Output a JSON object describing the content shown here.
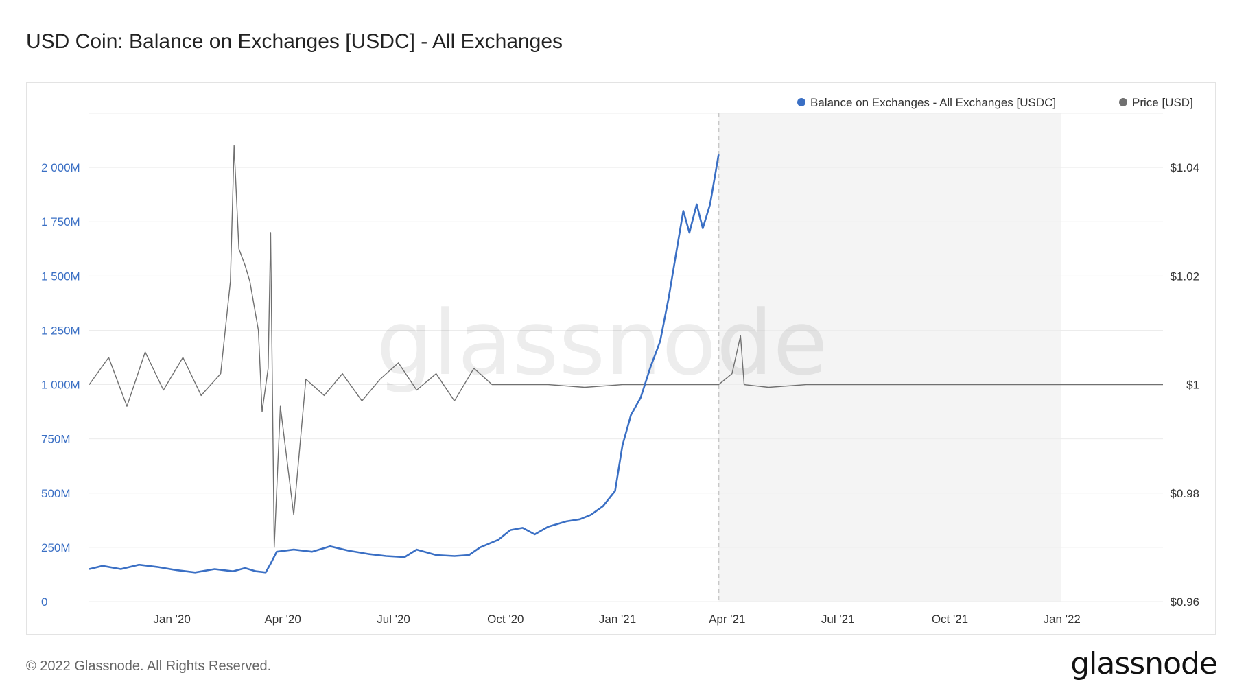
{
  "title": "USD Coin: Balance on Exchanges [USDC] - All Exchanges",
  "footer": "© 2022 Glassnode. All Rights Reserved.",
  "logo": "glassnode",
  "watermark": "glassnode",
  "chart_data": {
    "type": "line",
    "title": "USD Coin: Balance on Exchanges [USDC] - All Exchanges",
    "legend_position": "top-right",
    "grid": true,
    "x_ticks": [
      "Jan '20",
      "Apr '20",
      "Jul '20",
      "Oct '20",
      "Jan '21",
      "Apr '21",
      "Jul '21",
      "Oct '21",
      "Jan '22"
    ],
    "x_tick_dates": [
      "2020-01-01",
      "2020-04-01",
      "2020-07-01",
      "2020-10-01",
      "2021-01-01",
      "2021-04-01",
      "2021-07-01",
      "2021-10-01",
      "2022-01-01"
    ],
    "xlim": [
      "2019-10-25",
      "2022-03-25"
    ],
    "y_left": {
      "ticks": [
        "0",
        "250M",
        "500M",
        "750M",
        "1 000M",
        "1 250M",
        "1 500M",
        "1 750M",
        "2 000M"
      ],
      "tick_values": [
        0,
        250,
        500,
        750,
        1000,
        1250,
        1500,
        1750,
        2000
      ],
      "unit": "M",
      "ylim": [
        0,
        2250
      ]
    },
    "y_right": {
      "ticks": [
        "$0.96",
        "$0.98",
        "$1",
        "$1.02",
        "$1.04"
      ],
      "tick_values": [
        0.96,
        0.98,
        1.0,
        1.02,
        1.04
      ],
      "ylim": [
        0.96,
        1.05
      ]
    },
    "shaded_region": [
      "2021-03-25",
      "2021-12-31"
    ],
    "vertical_marker": "2021-03-25",
    "series": [
      {
        "name": "Balance on Exchanges - All Exchanges [USDC]",
        "axis": "left",
        "color": "#3a6fc4",
        "points": [
          [
            "2019-10-25",
            150
          ],
          [
            "2019-11-05",
            165
          ],
          [
            "2019-11-20",
            150
          ],
          [
            "2019-12-05",
            170
          ],
          [
            "2019-12-20",
            160
          ],
          [
            "2020-01-05",
            145
          ],
          [
            "2020-01-20",
            135
          ],
          [
            "2020-02-05",
            150
          ],
          [
            "2020-02-20",
            140
          ],
          [
            "2020-03-01",
            155
          ],
          [
            "2020-03-10",
            140
          ],
          [
            "2020-03-18",
            135
          ],
          [
            "2020-03-22",
            175
          ],
          [
            "2020-03-27",
            230
          ],
          [
            "2020-04-10",
            240
          ],
          [
            "2020-04-25",
            230
          ],
          [
            "2020-05-10",
            255
          ],
          [
            "2020-05-25",
            235
          ],
          [
            "2020-06-10",
            220
          ],
          [
            "2020-06-25",
            210
          ],
          [
            "2020-07-10",
            205
          ],
          [
            "2020-07-20",
            240
          ],
          [
            "2020-08-05",
            215
          ],
          [
            "2020-08-20",
            210
          ],
          [
            "2020-09-01",
            215
          ],
          [
            "2020-09-10",
            250
          ],
          [
            "2020-09-25",
            285
          ],
          [
            "2020-10-05",
            330
          ],
          [
            "2020-10-15",
            340
          ],
          [
            "2020-10-25",
            310
          ],
          [
            "2020-11-05",
            345
          ],
          [
            "2020-11-20",
            370
          ],
          [
            "2020-12-01",
            380
          ],
          [
            "2020-12-10",
            400
          ],
          [
            "2020-12-20",
            440
          ],
          [
            "2020-12-30",
            510
          ],
          [
            "2021-01-05",
            720
          ],
          [
            "2021-01-12",
            860
          ],
          [
            "2021-01-20",
            940
          ],
          [
            "2021-01-28",
            1080
          ],
          [
            "2021-02-05",
            1200
          ],
          [
            "2021-02-12",
            1400
          ],
          [
            "2021-02-18",
            1600
          ],
          [
            "2021-02-24",
            1800
          ],
          [
            "2021-03-01",
            1700
          ],
          [
            "2021-03-07",
            1830
          ],
          [
            "2021-03-12",
            1720
          ],
          [
            "2021-03-18",
            1830
          ],
          [
            "2021-03-22",
            1960
          ],
          [
            "2021-03-25",
            2060
          ]
        ]
      },
      {
        "name": "Price [USD]",
        "axis": "right",
        "color": "#707070",
        "points": [
          [
            "2019-10-25",
            1.0
          ],
          [
            "2019-11-10",
            1.005
          ],
          [
            "2019-11-25",
            0.996
          ],
          [
            "2019-12-10",
            1.006
          ],
          [
            "2019-12-25",
            0.999
          ],
          [
            "2020-01-10",
            1.005
          ],
          [
            "2020-01-25",
            0.998
          ],
          [
            "2020-02-10",
            1.002
          ],
          [
            "2020-02-18",
            1.019
          ],
          [
            "2020-02-21",
            1.044
          ],
          [
            "2020-02-25",
            1.025
          ],
          [
            "2020-03-01",
            1.022
          ],
          [
            "2020-03-05",
            1.019
          ],
          [
            "2020-03-12",
            1.01
          ],
          [
            "2020-03-15",
            0.995
          ],
          [
            "2020-03-20",
            1.003
          ],
          [
            "2020-03-22",
            1.028
          ],
          [
            "2020-03-25",
            0.97
          ],
          [
            "2020-03-30",
            0.996
          ],
          [
            "2020-04-10",
            0.976
          ],
          [
            "2020-04-20",
            1.001
          ],
          [
            "2020-05-05",
            0.998
          ],
          [
            "2020-05-20",
            1.002
          ],
          [
            "2020-06-05",
            0.997
          ],
          [
            "2020-06-20",
            1.001
          ],
          [
            "2020-07-05",
            1.004
          ],
          [
            "2020-07-20",
            0.999
          ],
          [
            "2020-08-05",
            1.002
          ],
          [
            "2020-08-20",
            0.997
          ],
          [
            "2020-09-05",
            1.003
          ],
          [
            "2020-09-20",
            1.0
          ],
          [
            "2020-10-05",
            1.0
          ],
          [
            "2020-11-05",
            1.0
          ],
          [
            "2020-12-05",
            0.9995
          ],
          [
            "2021-01-05",
            1.0
          ],
          [
            "2021-02-05",
            1.0
          ],
          [
            "2021-03-05",
            1.0
          ],
          [
            "2021-03-25",
            1.0
          ],
          [
            "2021-04-05",
            1.002
          ],
          [
            "2021-04-12",
            1.009
          ],
          [
            "2021-04-15",
            1.0
          ],
          [
            "2021-05-05",
            0.9995
          ],
          [
            "2021-06-05",
            1.0
          ],
          [
            "2021-07-05",
            1.0
          ],
          [
            "2021-08-05",
            1.0
          ],
          [
            "2021-09-05",
            1.0
          ],
          [
            "2021-10-05",
            1.0
          ],
          [
            "2021-11-05",
            1.0
          ],
          [
            "2021-12-05",
            1.0
          ],
          [
            "2022-01-05",
            1.0
          ],
          [
            "2022-02-05",
            1.0
          ],
          [
            "2022-03-25",
            1.0
          ]
        ]
      }
    ]
  }
}
